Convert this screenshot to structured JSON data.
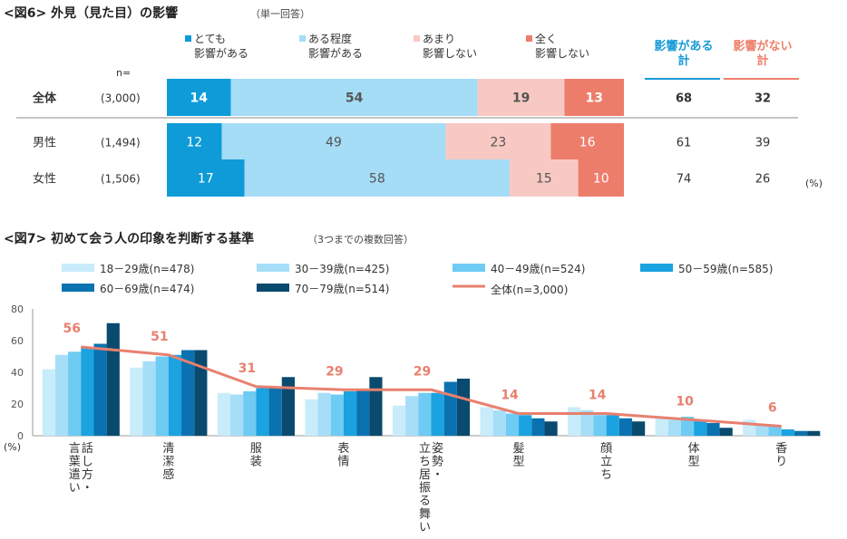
{
  "chart_data": [
    {
      "type": "bar",
      "stacked": true,
      "orientation": "horizontal",
      "title": "<図6> 外見（見た目）の影響",
      "subtitle": "（単一回答）",
      "n_label": "n=",
      "legend": [
        "とても\n影響がある",
        "ある程度\n影響がある",
        "あまり\n影響しない",
        "全く\n影響しない"
      ],
      "summary_headers": [
        "影響がある\n計",
        "影響がない\n計"
      ],
      "unit": "(%)",
      "rows": [
        {
          "label": "全体",
          "n": "(3,000)",
          "values": [
            14,
            54,
            19,
            13
          ],
          "affected": 68,
          "not_affected": 32
        },
        {
          "label": "男性",
          "n": "(1,494)",
          "values": [
            12,
            49,
            23,
            16
          ],
          "affected": 61,
          "not_affected": 39
        },
        {
          "label": "女性",
          "n": "(1,506)",
          "values": [
            17,
            58,
            15,
            10
          ],
          "affected": 74,
          "not_affected": 26
        }
      ]
    },
    {
      "type": "bar",
      "title": "<図7> 初めて会う人の印象を判断する基準",
      "subtitle": "（3つまでの複数回答）",
      "ylabel": "(%)",
      "ylim": [
        0,
        80
      ],
      "yticks": [
        0,
        20,
        40,
        60,
        80
      ],
      "categories": [
        "話し方・言葉遣い",
        "清潔感",
        "服装",
        "表情",
        "姿勢・立ち居振る舞い",
        "髪型",
        "顔立ち",
        "体型",
        "香り"
      ],
      "category_lines": [
        [
          "話し方・",
          "言葉遣い"
        ],
        [
          "清潔感"
        ],
        [
          "服装"
        ],
        [
          "表情"
        ],
        [
          "姿勢・",
          "立ち居振る舞い"
        ],
        [
          "髪型"
        ],
        [
          "顔立ち"
        ],
        [
          "体型"
        ],
        [
          "香り"
        ]
      ],
      "series": [
        {
          "name": "18－29歳(n=478)",
          "values": [
            42,
            43,
            27,
            23,
            19,
            18,
            18,
            11,
            10
          ]
        },
        {
          "name": "30－39歳(n=425)",
          "values": [
            51,
            47,
            26,
            27,
            25,
            16,
            16,
            10,
            7
          ]
        },
        {
          "name": "40－49歳(n=524)",
          "values": [
            53,
            50,
            28,
            26,
            27,
            14,
            13,
            12,
            6
          ]
        },
        {
          "name": "50－59歳(n=585)",
          "values": [
            56,
            51,
            30,
            28,
            27,
            13,
            13,
            10,
            4
          ]
        },
        {
          "name": "60－69歳(n=474)",
          "values": [
            58,
            54,
            31,
            29,
            34,
            11,
            11,
            8,
            3
          ]
        },
        {
          "name": "70－79歳(n=514)",
          "values": [
            71,
            54,
            37,
            37,
            36,
            9,
            9,
            5,
            3
          ]
        }
      ],
      "total_series": {
        "name": "全体(n=3,000)",
        "values": [
          56,
          51,
          31,
          29,
          29,
          14,
          14,
          10,
          6
        ]
      },
      "colors": {
        "age": [
          "#c9ecfb",
          "#a6def8",
          "#6ecbf3",
          "#1aa3e0",
          "#0a72b0",
          "#0a4a6e"
        ],
        "total": "#e8806f",
        "stack": [
          "#0e9bd8",
          "#a5dcf6",
          "#f8c9c3",
          "#ed7d6b"
        ],
        "header_blue": "#1a9ad6",
        "header_red": "#ee7f6c"
      }
    }
  ]
}
